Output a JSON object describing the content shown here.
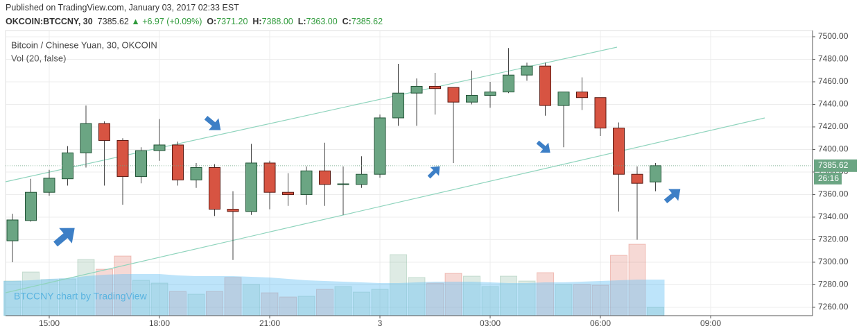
{
  "header": {
    "published": "Published on TradingView.com, January 03, 2017 02:33 EST",
    "symbol": "OKCOIN:BTCCNY, 30",
    "last": "7385.62",
    "arrow": "▲",
    "change": "+6.97 (+0.09%)",
    "o_label": "O:",
    "o": "7371.20",
    "h_label": "H:",
    "h": "7388.00",
    "l_label": "L:",
    "l": "7363.00",
    "c_label": "C:",
    "c": "7385.62"
  },
  "chart_data": {
    "type": "candlestick",
    "title": "Bitcoin / Chinese Yuan, 30, OKCOIN",
    "subtitle": "Vol (20, false)",
    "watermark": "BTCCNY chart by TradingView",
    "countdown": "26:16",
    "categories": [
      null,
      null,
      "15:00",
      null,
      null,
      null,
      null,
      null,
      "18:00",
      null,
      null,
      null,
      null,
      null,
      "21:00",
      null,
      null,
      null,
      null,
      null,
      "3",
      null,
      null,
      null,
      null,
      null,
      "03:00",
      null,
      null,
      null,
      null,
      null,
      "06:00",
      null,
      null,
      null,
      null,
      null,
      "09:00",
      null,
      null,
      null,
      null,
      null
    ],
    "open": [
      7319,
      7337,
      7362,
      7374,
      7397,
      7423,
      7408,
      7376,
      7399,
      7404,
      7373,
      7384,
      7347,
      7345,
      7388,
      7362,
      7360,
      7381,
      7369,
      7369,
      7378,
      7428,
      7450,
      7456,
      7455,
      7442,
      7448,
      7451,
      7466,
      7474,
      7439,
      7451,
      7446,
      7419,
      7378,
      7371.2,
      null,
      null,
      null,
      null,
      null,
      null,
      null,
      null
    ],
    "high": [
      7343,
      7374,
      7382,
      7403,
      7439,
      7425,
      7410,
      7402,
      7427,
      7407,
      7388,
      7387,
      7363,
      7405,
      7390,
      7379,
      7385,
      7406,
      7385,
      7394,
      7431,
      7476,
      7463,
      7468,
      7455,
      7470,
      7460,
      7490,
      7477,
      7477,
      7451,
      7464,
      7446,
      7424,
      7385,
      7388,
      null,
      null,
      null,
      null,
      null,
      null,
      null,
      null
    ],
    "low": [
      7300,
      7336,
      7359,
      7368,
      7384,
      7368,
      7351,
      7370,
      7390,
      7368,
      7366,
      7341,
      7302,
      7342,
      7347,
      7350,
      7351,
      7350,
      7342,
      7366,
      7375,
      7421,
      7421,
      7431,
      7388,
      7440,
      7437,
      7450,
      7461,
      7430,
      7402,
      7435,
      7412,
      7345,
      7320,
      7363,
      null,
      null,
      null,
      null,
      null,
      null,
      null,
      null
    ],
    "close": [
      7337.5,
      7362,
      7374.5,
      7397,
      7423,
      7408,
      7376,
      7399,
      7404,
      7373,
      7384,
      7347,
      7345,
      7388,
      7362,
      7360,
      7381,
      7369,
      7369.5,
      7378,
      7428,
      7450,
      7456,
      7454,
      7442,
      7448,
      7451,
      7466,
      7474,
      7439,
      7451,
      7446,
      7419,
      7378,
      7370,
      7385.62,
      null,
      null,
      null,
      null,
      null,
      null,
      null,
      null
    ],
    "volume": [
      50,
      63,
      52,
      53,
      81,
      67,
      86,
      51,
      47,
      35,
      31,
      35,
      55,
      45,
      33,
      27,
      28,
      38,
      42,
      34,
      38,
      88,
      55,
      47,
      61,
      57,
      42,
      57,
      50,
      62,
      45,
      45,
      44,
      87,
      103,
      12,
      null,
      null,
      null,
      null,
      null,
      null,
      null,
      null
    ],
    "volume_ma": [
      50,
      51,
      53,
      54,
      57,
      59,
      60,
      60,
      60,
      58,
      57,
      57,
      57,
      56,
      55,
      53,
      51,
      50,
      49,
      48,
      47,
      47,
      48,
      49,
      49,
      49,
      48,
      47,
      47,
      48,
      48,
      49,
      50,
      51,
      52,
      52,
      null,
      null,
      null,
      null,
      null,
      null,
      null,
      null
    ],
    "volume_lim": [
      0,
      411
    ],
    "up_color": "#6ba583",
    "down_color": "#d75442",
    "ylim": [
      7252.6,
      7505.5
    ],
    "yticks": [
      {
        "value": 7260,
        "label": "7260.00"
      },
      {
        "value": 7280,
        "label": "7280.00"
      },
      {
        "value": 7300,
        "label": "7300.00"
      },
      {
        "value": 7320,
        "label": "7320.00"
      },
      {
        "value": 7340,
        "label": "7340.00"
      },
      {
        "value": 7360,
        "label": "7360.00"
      },
      {
        "value": 7380,
        "label": "7380.00"
      },
      {
        "value": 7400,
        "label": "7400.00"
      },
      {
        "value": 7420,
        "label": "7420.00"
      },
      {
        "value": 7440,
        "label": "7440.00"
      },
      {
        "value": 7460,
        "label": "7460.00"
      },
      {
        "value": 7480,
        "label": "7480.00"
      },
      {
        "value": 7500,
        "label": "7500.00"
      }
    ],
    "grid": true
  }
}
